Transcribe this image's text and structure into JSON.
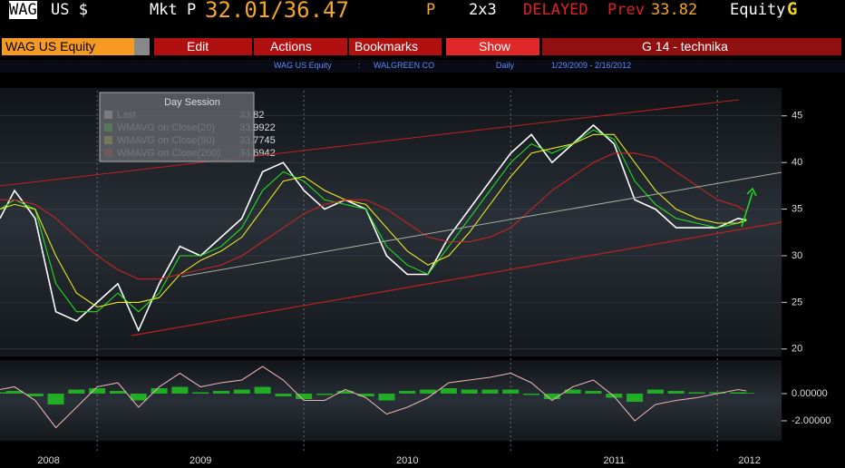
{
  "header": {
    "ticker": "WAG",
    "currency": "US $",
    "mkt_label": "Mkt P",
    "bid_ask": "32.01/36.47",
    "p_suffix": "P",
    "size": "2x3",
    "delayed": "DELAYED",
    "prev_label": "Prev",
    "prev_value": "33.82",
    "market": "Equity",
    "function_key": "G"
  },
  "toolbar": {
    "security": "WAG US Equity",
    "buttons": [
      "Edit",
      "Actions",
      "Bookmarks",
      "Show"
    ],
    "page": "G 14 - technika"
  },
  "info_bar": {
    "security": "WAG US Equity",
    "separator": ":",
    "name": "WALGREEN CO",
    "period": "Daily",
    "range": "1/29/2009 - 2/16/2012"
  },
  "chart_data": [
    {
      "type": "line",
      "legend_title": "Day Session",
      "x": [
        2008.53,
        2008.6,
        2008.7,
        2008.8,
        2008.9,
        2009.0,
        2009.1,
        2009.2,
        2009.3,
        2009.4,
        2009.5,
        2009.6,
        2009.7,
        2009.8,
        2009.9,
        2010.0,
        2010.1,
        2010.2,
        2010.3,
        2010.4,
        2010.5,
        2010.6,
        2010.7,
        2010.8,
        2010.9,
        2011.0,
        2011.1,
        2011.2,
        2011.3,
        2011.4,
        2011.5,
        2011.6,
        2011.7,
        2011.8,
        2011.9,
        2012.0,
        2012.1,
        2012.14
      ],
      "series": [
        {
          "name": "Last",
          "color": "#ffffff",
          "legend_value": 33.82,
          "values": [
            34,
            37,
            34,
            24,
            23,
            25,
            27,
            22,
            27,
            31,
            30,
            32,
            34,
            39,
            40,
            37,
            35,
            36,
            35,
            30,
            28,
            28,
            32,
            35,
            38,
            41,
            43,
            40,
            42,
            44,
            42,
            36,
            35,
            33,
            33,
            33,
            34,
            33.82
          ]
        },
        {
          "name": "WMAVG on Close(20)",
          "color": "#22dd22",
          "legend_value": 33.9922,
          "values": [
            35,
            36,
            35,
            27,
            24,
            24,
            26,
            24,
            26,
            30,
            30,
            31,
            33,
            37,
            39,
            38,
            36,
            35.5,
            35,
            31,
            29,
            28,
            31,
            34,
            37,
            40,
            42,
            41,
            42,
            43.5,
            42.5,
            38,
            35.5,
            34,
            33.5,
            33,
            33.5,
            33.9922
          ]
        },
        {
          "name": "WMAVG on Close(50)",
          "color": "#e8e820",
          "legend_value": 33.7745,
          "values": [
            35,
            35.5,
            35,
            30,
            26,
            24.5,
            25,
            25,
            25.5,
            28,
            29.5,
            30.5,
            32,
            35,
            38,
            38.5,
            37,
            36,
            35.5,
            33,
            30.5,
            29,
            30,
            32.5,
            35.5,
            38.5,
            41,
            41.5,
            42,
            43,
            43,
            40,
            37,
            35,
            34,
            33.5,
            33.5,
            33.7745
          ]
        },
        {
          "name": "WMAVG on Close(200)",
          "color": "#cc2222",
          "legend_value": 34.6942,
          "values": [
            36,
            36,
            35.5,
            34,
            32,
            30,
            28.5,
            27.5,
            27.5,
            28,
            28.5,
            29,
            30,
            31.5,
            33,
            34.5,
            35.5,
            36,
            36,
            35,
            33.5,
            32,
            31.5,
            31.5,
            32,
            33,
            35,
            37,
            38.5,
            40,
            41,
            41,
            40.5,
            39,
            37.5,
            36,
            35.3,
            34.6942
          ]
        }
      ],
      "xlim": [
        2008.53,
        2012.31
      ],
      "xticks": [
        2009,
        2010,
        2011,
        2012
      ],
      "x_labels": [
        "2008",
        "2009",
        "2010",
        "2011",
        "2012"
      ],
      "ylim": [
        19.2,
        47.7
      ],
      "yticks": [
        20,
        25,
        30,
        35,
        40,
        45
      ],
      "grid": true
    },
    {
      "type": "line",
      "x": [
        2008.53,
        2008.6,
        2008.7,
        2008.8,
        2008.9,
        2009.0,
        2009.1,
        2009.2,
        2009.3,
        2009.4,
        2009.5,
        2009.6,
        2009.7,
        2009.8,
        2009.9,
        2010.0,
        2010.1,
        2010.2,
        2010.3,
        2010.4,
        2010.5,
        2010.6,
        2010.7,
        2010.8,
        2010.9,
        2011.0,
        2011.1,
        2011.2,
        2011.3,
        2011.4,
        2011.5,
        2011.6,
        2011.7,
        2011.8,
        2011.9,
        2012.0,
        2012.1,
        2012.14
      ],
      "series": [
        {
          "type": "bar",
          "color": "#22cc22",
          "values": [
            0.1,
            0.2,
            -0.2,
            -0.8,
            0.3,
            0.4,
            0.2,
            -0.5,
            0.4,
            0.5,
            0.1,
            0.2,
            0.3,
            0.5,
            -0.2,
            -0.4,
            -0.1,
            0.2,
            -0.2,
            -0.5,
            0.2,
            0.3,
            0.4,
            0.3,
            0.3,
            0.3,
            -0.1,
            -0.4,
            0.3,
            0.2,
            -0.3,
            -0.6,
            0.3,
            0.2,
            0.1,
            0.1,
            0.1,
            0.05
          ]
        },
        {
          "type": "line",
          "color": "#e8b0b0",
          "values": [
            0.3,
            0.5,
            -0.5,
            -2.5,
            -1,
            0.5,
            0.8,
            -1,
            0.5,
            1.5,
            0.5,
            0.8,
            1,
            2,
            1,
            -0.5,
            -0.5,
            0.3,
            -0.3,
            -1.5,
            -1,
            -0.3,
            0.8,
            1,
            1.2,
            1.5,
            0.8,
            -0.5,
            0.5,
            1,
            -0.2,
            -2,
            -0.8,
            -0.5,
            -0.3,
            0,
            0.3,
            0.2
          ]
        }
      ],
      "xlim": [
        2008.53,
        2012.31
      ],
      "ylim": [
        -3.47,
        2.47
      ],
      "yticks": [
        {
          "value": 0,
          "label": "0.00000"
        },
        {
          "value": -2,
          "label": "-2.00000"
        }
      ]
    }
  ]
}
